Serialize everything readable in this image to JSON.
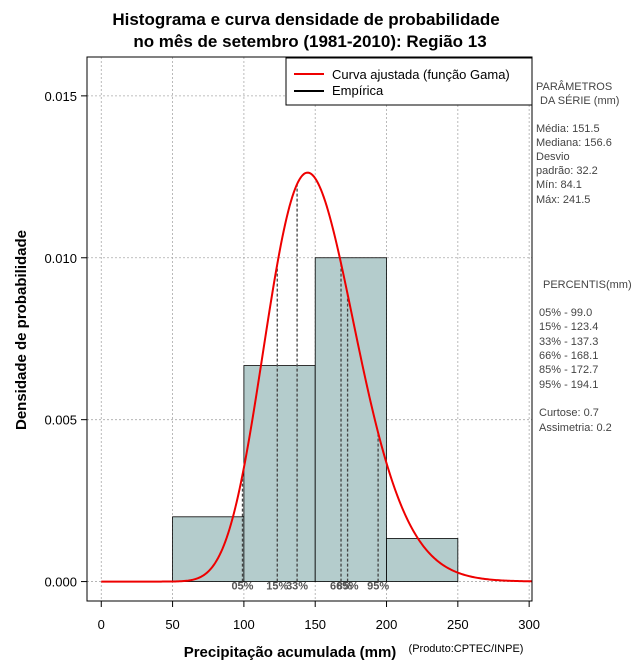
{
  "chart_data": {
    "type": "bar",
    "title_line1": "Histograma e curva densidade de probabilidade",
    "title_line2": "no mês de setembro (1981-2010): Região 13",
    "xlabel": "Precipitação acumulada (mm)",
    "ylabel": "Densidade de probabilidade",
    "credit": "(Produto:CPTEC/INPE)",
    "xlim": [
      -10,
      302
    ],
    "ylim": [
      -0.0006,
      0.0162
    ],
    "x_ticks": [
      0,
      50,
      100,
      150,
      200,
      250,
      300
    ],
    "x_tick_labels": [
      "0",
      "50",
      "100",
      "150",
      "200",
      "250",
      "300"
    ],
    "y_ticks": [
      0.0,
      0.005,
      0.01,
      0.015
    ],
    "y_tick_labels": [
      "0.000",
      "0.005",
      "0.010",
      "0.015"
    ],
    "grid": true,
    "bins": [
      {
        "x0": 50,
        "x1": 100,
        "density": 0.002
      },
      {
        "x0": 100,
        "x1": 150,
        "density": 0.00667
      },
      {
        "x0": 150,
        "x1": 200,
        "density": 0.01
      },
      {
        "x0": 200,
        "x1": 250,
        "density": 0.00133
      }
    ],
    "bar_color": "#b4cccc",
    "gamma_curve": {
      "mean": 151.5,
      "sd": 32.2,
      "color": "#ee0000"
    },
    "percentile_lines": [
      {
        "label": "05%",
        "value": 99.0
      },
      {
        "label": "15%",
        "value": 123.4
      },
      {
        "label": "33%",
        "value": 137.3
      },
      {
        "label": "66%",
        "value": 168.1
      },
      {
        "label": "85%",
        "value": 172.7
      },
      {
        "label": "95%",
        "value": 194.1
      }
    ],
    "legend": {
      "position": "top-right",
      "entries": [
        {
          "label": "Curva ajustada (função Gama)",
          "color": "#ee0000"
        },
        {
          "label": "Empírica",
          "color": "#000000"
        }
      ]
    }
  },
  "side_panel": {
    "params_title_1": "PARÂMETROS",
    "params_title_2": "DA SÉRIE (mm)",
    "media": "Média:  151.5",
    "mediana": "Mediana:  156.6",
    "desvio_1": "Desvio",
    "desvio_2": "padrão:  32.2",
    "min": "Mín:  84.1",
    "max": "Máx:  241.5",
    "percentis_title": "PERCENTIS(mm)",
    "p05": "05% -  99.0",
    "p15": "15% -  123.4",
    "p33": "33% -  137.3",
    "p66": "66% -  168.1",
    "p85": "85% -  172.7",
    "p95": "95% -  194.1",
    "curtose": "Curtose:  0.7",
    "assimetria": "Assimetria:  0.2"
  }
}
